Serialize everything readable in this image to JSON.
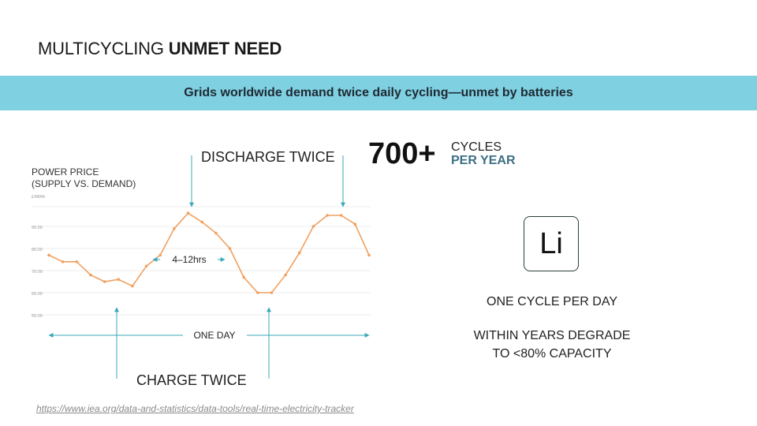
{
  "title": {
    "normal": "MULTICYCLING ",
    "bold": "UNMET NEED"
  },
  "banner": {
    "text": "Grids worldwide demand twice daily cycling—unmet by batteries"
  },
  "chart_data": {
    "type": "line",
    "ylabel_lines": [
      "POWER PRICE",
      "(SUPPLY VS. DEMAND)"
    ],
    "yunit": "£/MWh",
    "yticks": [
      "50.00",
      "60.00",
      "70.00",
      "80.00",
      "90.00"
    ],
    "ylim": [
      45,
      100
    ],
    "grid": true,
    "series": [
      {
        "values": [
          77,
          74,
          74,
          68,
          65,
          66,
          63,
          72,
          77,
          89,
          96,
          92,
          87,
          80,
          67,
          60,
          60,
          68,
          78,
          90,
          95,
          95,
          91,
          77
        ]
      }
    ],
    "line_color": "#f0a060",
    "annotations": {
      "discharge": "DISCHARGE TWICE",
      "charge": "CHARGE TWICE",
      "duration": "4–12hrs",
      "period": "ONE DAY"
    }
  },
  "stat": {
    "number": "700+",
    "label1": "CYCLES",
    "label2": "PER YEAR"
  },
  "li": {
    "symbol": "Li"
  },
  "notes": {
    "line1": "ONE CYCLE PER DAY",
    "line2a": "WITHIN YEARS DEGRADE",
    "line2b": "TO <80% CAPACITY"
  },
  "source": "https://www.iea.org/data-and-statistics/data-tools/real-time-electricity-tracker",
  "colors": {
    "banner": "#7fd0e1",
    "arrow": "#3aa8b8",
    "accent_text": "#3d6f87"
  }
}
